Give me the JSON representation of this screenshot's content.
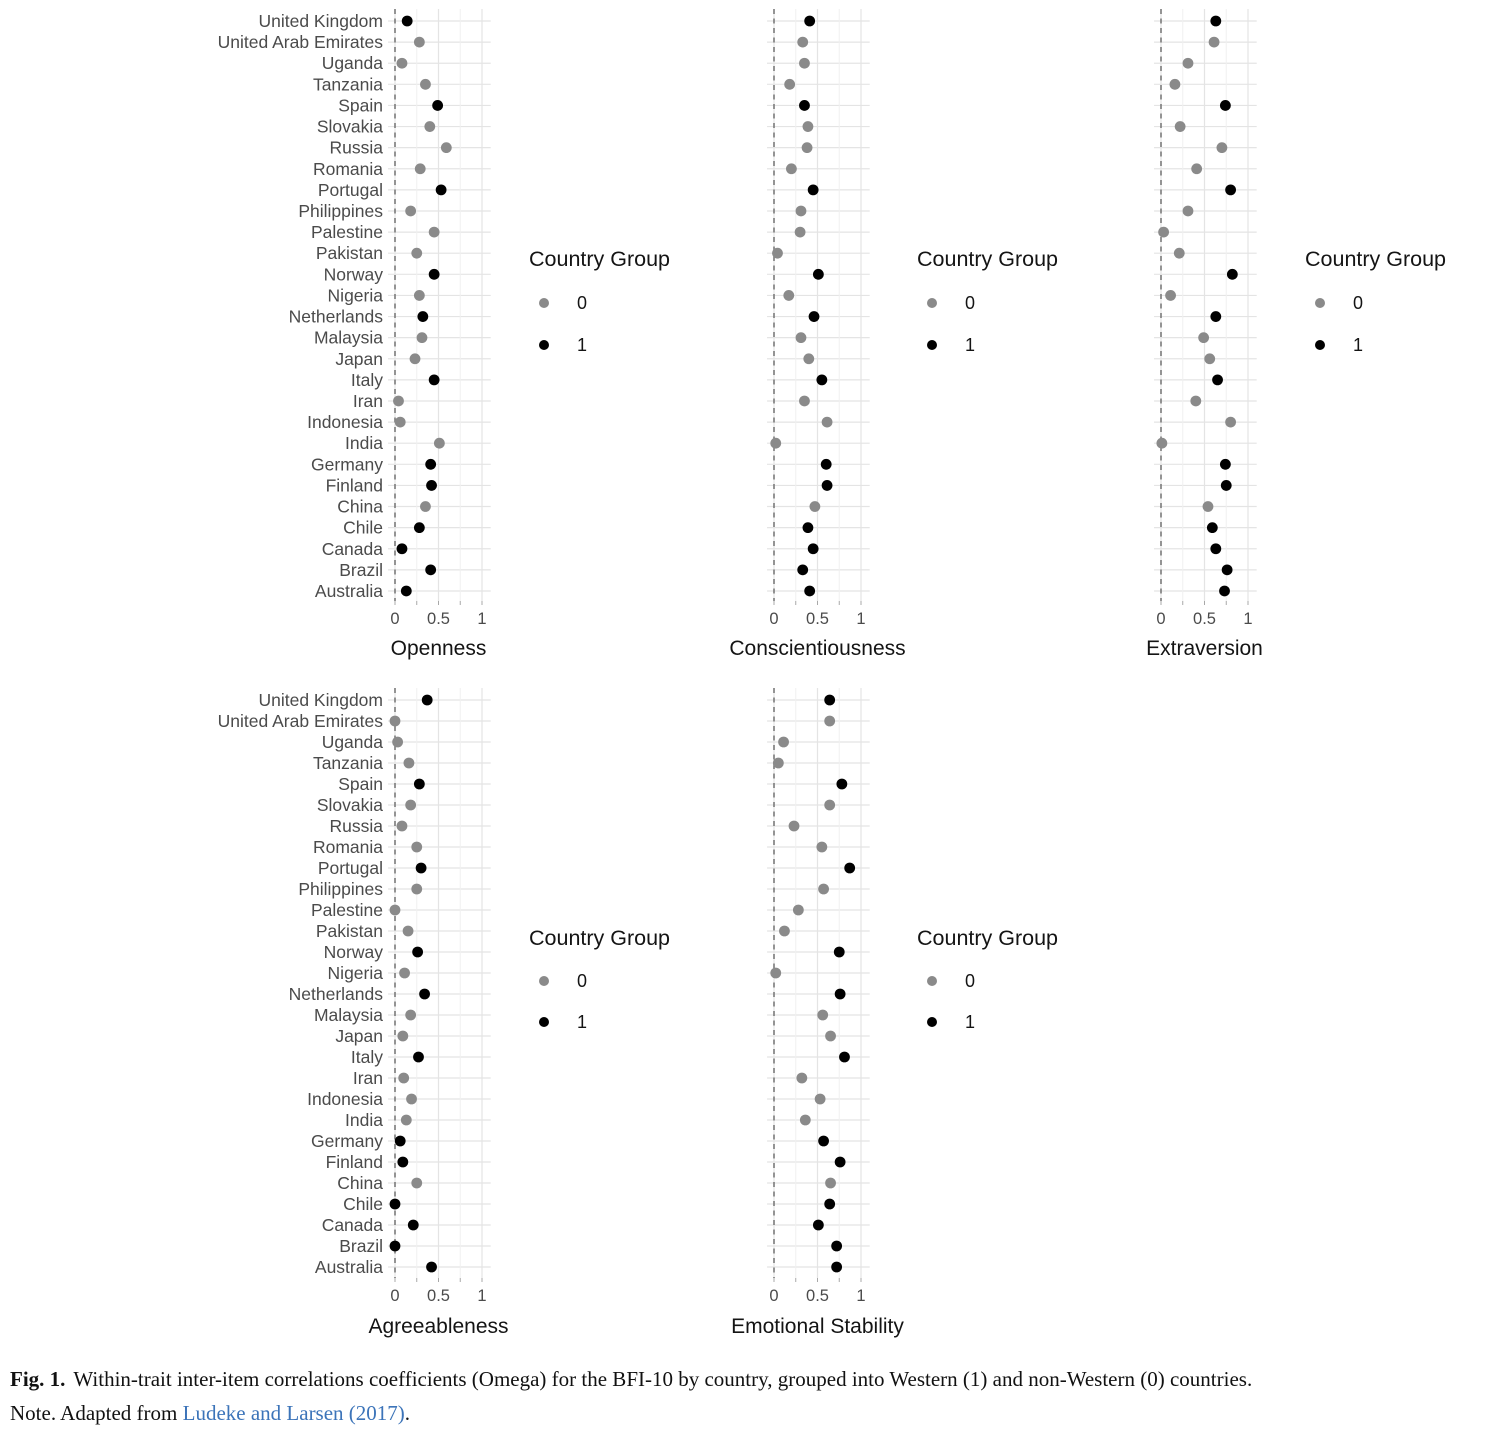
{
  "figure": {
    "caption_label": "Fig. 1.",
    "caption_text": "Within-trait inter-item correlations coefficients (Omega) for the BFI-10 by country, grouped into Western (1) and non-Western (0) countries.",
    "note_prefix": "Note. Adapted from ",
    "note_link_text": "Ludeke and Larsen (2017)",
    "note_suffix": "."
  },
  "legend": {
    "title": "Country Group",
    "items": [
      {
        "label": "0",
        "color": "#8a8a8a"
      },
      {
        "label": "1",
        "color": "#000000"
      }
    ]
  },
  "colors": {
    "group0": "#8a8a8a",
    "group1": "#000000",
    "grid_major": "#e4e4e4",
    "grid_minor": "#f0f0f0",
    "zero_line": "#737373",
    "axis_text": "#4b4b4b",
    "title_text": "#141414",
    "tick_mark": "#a8a8a8",
    "link": "#3c74b9"
  },
  "chart_data": {
    "type": "scatter",
    "subtype": "cleveland-dot-plot",
    "categories": [
      "United Kingdom",
      "United Arab Emirates",
      "Uganda",
      "Tanzania",
      "Spain",
      "Slovakia",
      "Russia",
      "Romania",
      "Portugal",
      "Philippines",
      "Palestine",
      "Pakistan",
      "Norway",
      "Nigeria",
      "Netherlands",
      "Malaysia",
      "Japan",
      "Italy",
      "Iran",
      "Indonesia",
      "India",
      "Germany",
      "Finland",
      "China",
      "Chile",
      "Canada",
      "Brazil",
      "Australia"
    ],
    "groups": [
      1,
      0,
      0,
      0,
      1,
      0,
      0,
      0,
      1,
      0,
      0,
      0,
      1,
      0,
      1,
      0,
      0,
      1,
      0,
      0,
      0,
      1,
      1,
      0,
      1,
      1,
      1,
      1
    ],
    "group_meaning": {
      "1": "Western",
      "0": "non-Western"
    },
    "xlim": [
      -0.08,
      1.1
    ],
    "x_ticks": [
      0,
      0.5,
      1
    ],
    "x_tick_labels": [
      "0",
      "0.5",
      "1"
    ],
    "grid": true,
    "legend_title": "Country Group",
    "legend_labels": [
      "0",
      "1"
    ],
    "legend_position": "right",
    "zero_reference_line": true,
    "panels": [
      {
        "title": "Openness",
        "values": [
          0.14,
          0.28,
          0.08,
          0.35,
          0.49,
          0.4,
          0.59,
          0.29,
          0.53,
          0.18,
          0.45,
          0.25,
          0.45,
          0.28,
          0.32,
          0.31,
          0.23,
          0.45,
          0.04,
          0.06,
          0.51,
          0.41,
          0.42,
          0.35,
          0.28,
          0.08,
          0.41,
          0.13
        ]
      },
      {
        "title": "Conscientiousness",
        "values": [
          0.41,
          0.33,
          0.35,
          0.18,
          0.35,
          0.39,
          0.38,
          0.2,
          0.45,
          0.31,
          0.3,
          0.04,
          0.51,
          0.17,
          0.46,
          0.31,
          0.4,
          0.55,
          0.35,
          0.61,
          0.02,
          0.6,
          0.61,
          0.47,
          0.39,
          0.45,
          0.33,
          0.41
        ]
      },
      {
        "title": "Extraversion",
        "values": [
          0.63,
          0.61,
          0.31,
          0.16,
          0.74,
          0.22,
          0.7,
          0.41,
          0.8,
          0.31,
          0.03,
          0.21,
          0.82,
          0.11,
          0.63,
          0.49,
          0.56,
          0.65,
          0.4,
          0.8,
          0.01,
          0.74,
          0.75,
          0.54,
          0.59,
          0.63,
          0.76,
          0.73
        ]
      },
      {
        "title": "Agreeableness",
        "values": [
          0.37,
          0.0,
          0.03,
          0.16,
          0.28,
          0.18,
          0.08,
          0.25,
          0.3,
          0.25,
          0.0,
          0.15,
          0.26,
          0.11,
          0.34,
          0.18,
          0.09,
          0.27,
          0.1,
          0.19,
          0.13,
          0.06,
          0.09,
          0.25,
          0.0,
          0.21,
          0.0,
          0.42
        ]
      },
      {
        "title": "Emotional Stability",
        "values": [
          0.64,
          0.64,
          0.11,
          0.05,
          0.78,
          0.64,
          0.23,
          0.55,
          0.87,
          0.57,
          0.28,
          0.12,
          0.75,
          0.02,
          0.76,
          0.56,
          0.65,
          0.81,
          0.32,
          0.53,
          0.36,
          0.57,
          0.76,
          0.65,
          0.64,
          0.51,
          0.72,
          0.72
        ]
      }
    ]
  }
}
